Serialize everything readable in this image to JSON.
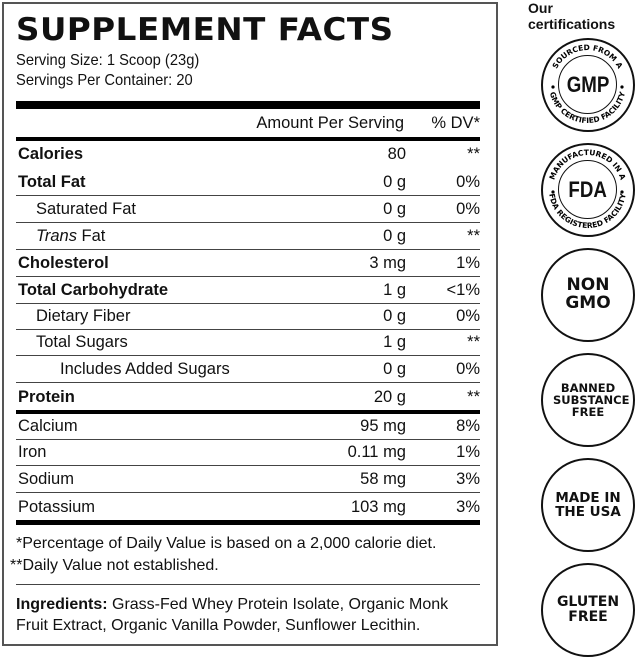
{
  "facts": {
    "title": "SUPPLEMENT FACTS",
    "serving_size": "Serving Size: 1 Scoop (23g)",
    "servings_per_container": "Servings Per Container: 20",
    "header_amount": "Amount Per Serving",
    "header_dv": "% DV*",
    "rows": [
      {
        "name": "Calories",
        "amount": "80",
        "dv": "**"
      },
      {
        "name": "Total Fat",
        "amount": "0 g",
        "dv": "0%"
      },
      {
        "name": "Saturated Fat",
        "amount": "0 g",
        "dv": "0%"
      },
      {
        "name": "Trans",
        "name_suffix": " Fat",
        "amount": "0 g",
        "dv": "**"
      },
      {
        "name": "Cholesterol",
        "amount": "3 mg",
        "dv": "1%"
      },
      {
        "name": "Total Carbohydrate",
        "amount": "1 g",
        "dv": "<1%"
      },
      {
        "name": "Dietary Fiber",
        "amount": "0 g",
        "dv": "0%"
      },
      {
        "name": "Total Sugars",
        "amount": "1 g",
        "dv": "**"
      },
      {
        "name": "Includes Added Sugars",
        "amount": "0 g",
        "dv": "0%"
      },
      {
        "name": "Protein",
        "amount": "20 g",
        "dv": "**"
      },
      {
        "name": "Calcium",
        "amount": "95 mg",
        "dv": "8%"
      },
      {
        "name": "Iron",
        "amount": "0.11 mg",
        "dv": "1%"
      },
      {
        "name": "Sodium",
        "amount": "58 mg",
        "dv": "3%"
      },
      {
        "name": "Potassium",
        "amount": "103 mg",
        "dv": "3%"
      }
    ],
    "footnote1": "*Percentage of Daily Value is based on a 2,000 calorie diet.",
    "footnote2": "**Daily Value not established.",
    "ingredients_label": "Ingredients:",
    "ingredients": " Grass-Fed Whey Protein Isolate, Organic Monk Fruit Extract, Organic Vanilla Powder, Sunflower Lecithin."
  },
  "certifications": {
    "title": "Our certifications",
    "badges": [
      {
        "main": "GMP",
        "top": "SOURCED FROM A",
        "bottom": "GMP CERTIFIED FACILITY"
      },
      {
        "main": "FDA",
        "top": "MANUFACTURED IN A",
        "bottom": "FDA REGISTERED FACILITY"
      },
      {
        "main": "NON GMO"
      },
      {
        "main": "BANNED SUBSTANCE FREE"
      },
      {
        "main": "MADE IN THE USA"
      },
      {
        "main": "GLUTEN FREE"
      }
    ]
  }
}
